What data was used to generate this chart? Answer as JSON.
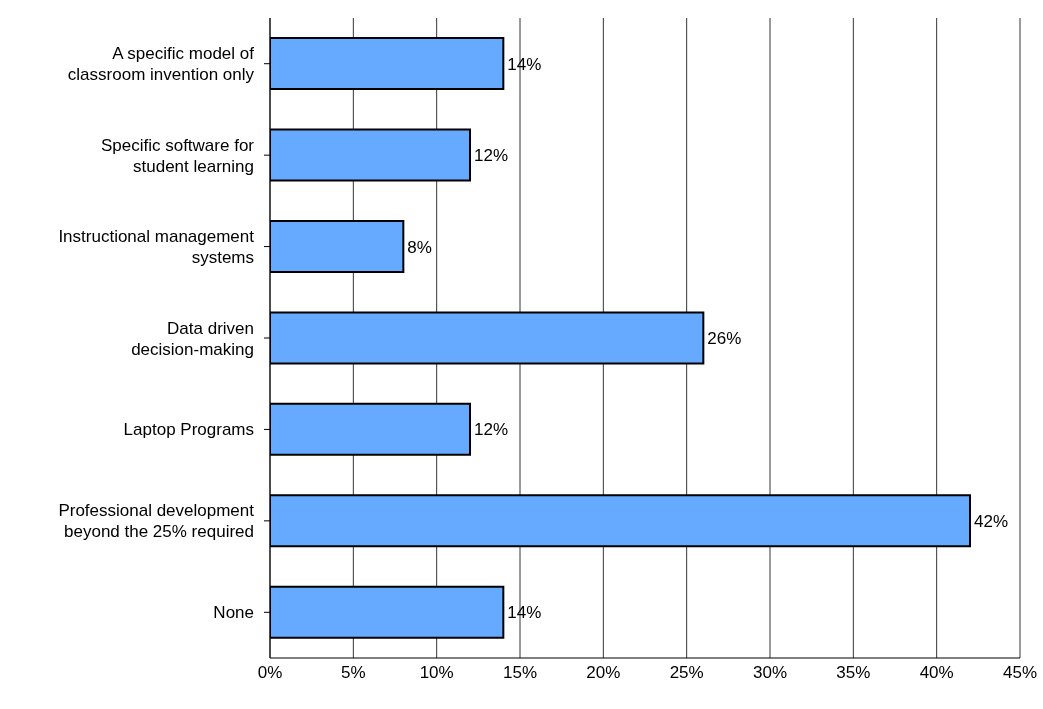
{
  "chart_data": {
    "type": "bar",
    "orientation": "horizontal",
    "categories": [
      "A specific model of classroom invention only",
      "Specific software for student learning",
      "Instructional management systems",
      "Data driven decision-making",
      "Laptop Programs",
      "Professional development beyond the 25% required",
      "None"
    ],
    "values": [
      14,
      12,
      8,
      26,
      12,
      42,
      14
    ],
    "value_labels": [
      "14%",
      "12%",
      "8%",
      "26%",
      "12%",
      "42%",
      "14%"
    ],
    "color": "#66aaff",
    "xlim": [
      0,
      45
    ],
    "xticks": [
      {
        "value": 0,
        "label": "0%"
      },
      {
        "value": 5,
        "label": "5%"
      },
      {
        "value": 10,
        "label": "10%"
      },
      {
        "value": 15,
        "label": "15%"
      },
      {
        "value": 20,
        "label": "20%"
      },
      {
        "value": 25,
        "label": "25%"
      },
      {
        "value": 30,
        "label": "30%"
      },
      {
        "value": 35,
        "label": "35%"
      },
      {
        "value": 40,
        "label": "40%"
      },
      {
        "value": 45,
        "label": "45%"
      }
    ],
    "grid": "x",
    "legend": false
  }
}
